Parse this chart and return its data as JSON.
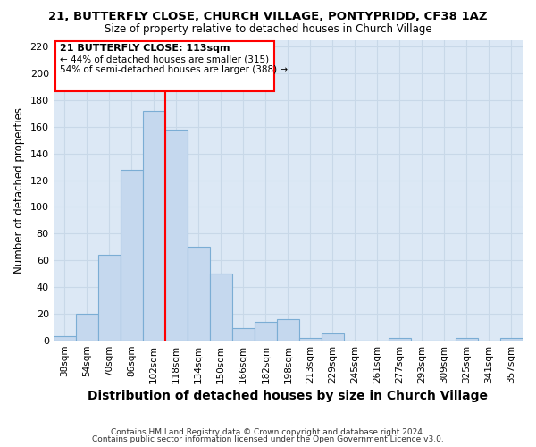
{
  "title1": "21, BUTTERFLY CLOSE, CHURCH VILLAGE, PONTYPRIDD, CF38 1AZ",
  "title2": "Size of property relative to detached houses in Church Village",
  "xlabel": "Distribution of detached houses by size in Church Village",
  "ylabel": "Number of detached properties",
  "categories": [
    "38sqm",
    "54sqm",
    "70sqm",
    "86sqm",
    "102sqm",
    "118sqm",
    "134sqm",
    "150sqm",
    "166sqm",
    "182sqm",
    "198sqm",
    "213sqm",
    "229sqm",
    "245sqm",
    "261sqm",
    "277sqm",
    "293sqm",
    "309sqm",
    "325sqm",
    "341sqm",
    "357sqm"
  ],
  "values": [
    3,
    20,
    64,
    128,
    172,
    158,
    70,
    50,
    9,
    14,
    16,
    2,
    5,
    0,
    0,
    2,
    0,
    0,
    2,
    0,
    2
  ],
  "bar_color": "#c5d8ee",
  "bar_edge_color": "#7badd4",
  "grid_color": "#c8d8e8",
  "ax_background_color": "#dce8f5",
  "fig_background_color": "#ffffff",
  "annotation_line1": "21 BUTTERFLY CLOSE: 113sqm",
  "annotation_line2": "← 44% of detached houses are smaller (315)",
  "annotation_line3": "54% of semi-detached houses are larger (388) →",
  "footer1": "Contains HM Land Registry data © Crown copyright and database right 2024.",
  "footer2": "Contains public sector information licensed under the Open Government Licence v3.0.",
  "ylim": [
    0,
    225
  ],
  "yticks": [
    0,
    20,
    40,
    60,
    80,
    100,
    120,
    140,
    160,
    180,
    200,
    220
  ],
  "red_line_index": 5
}
